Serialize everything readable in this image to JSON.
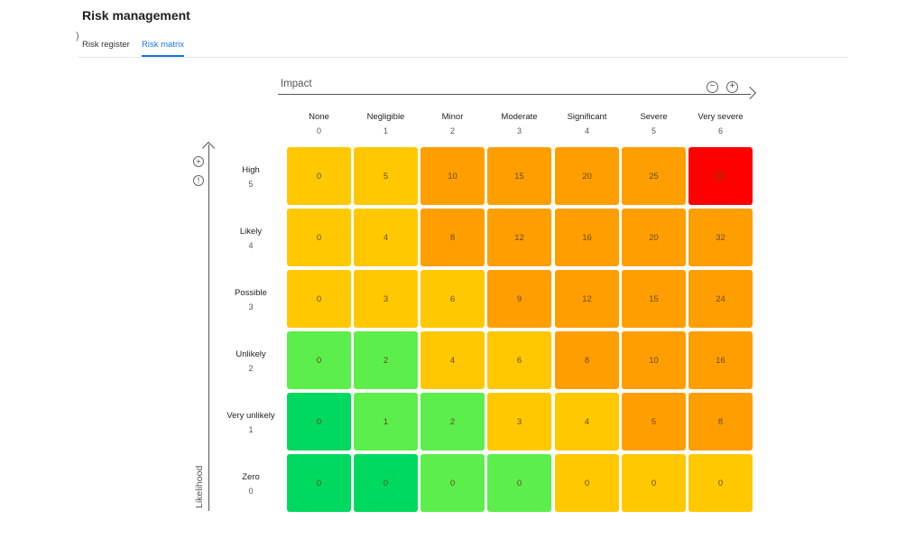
{
  "page": {
    "title": "Risk management"
  },
  "tabs": [
    {
      "label": "Risk register",
      "active": false
    },
    {
      "label": "Risk matrix",
      "active": true
    }
  ],
  "axes": {
    "impact_label": "Impact",
    "likelihood_label": "Likelihood"
  },
  "icons": {
    "zoom_out": "minus-circle-icon",
    "zoom_in": "plus-circle-icon",
    "add": "plus-circle-icon",
    "info": "info-circle-icon"
  },
  "impact_levels": [
    {
      "label": "None",
      "value": "0"
    },
    {
      "label": "Negligible",
      "value": "1"
    },
    {
      "label": "Minor",
      "value": "2"
    },
    {
      "label": "Moderate",
      "value": "3"
    },
    {
      "label": "Significant",
      "value": "4"
    },
    {
      "label": "Severe",
      "value": "5"
    },
    {
      "label": "Very severe",
      "value": "6"
    }
  ],
  "likelihood_levels": [
    {
      "label": "High",
      "value": "5"
    },
    {
      "label": "Likely",
      "value": "4"
    },
    {
      "label": "Possible",
      "value": "3"
    },
    {
      "label": "Unlikely",
      "value": "2"
    },
    {
      "label": "Very unlikely",
      "value": "1"
    },
    {
      "label": "Zero",
      "value": "0"
    }
  ],
  "matrix": [
    [
      "0",
      "5",
      "10",
      "15",
      "20",
      "25",
      "30"
    ],
    [
      "0",
      "4",
      "8",
      "12",
      "16",
      "20",
      "32"
    ],
    [
      "0",
      "3",
      "6",
      "9",
      "12",
      "15",
      "24"
    ],
    [
      "0",
      "2",
      "4",
      "6",
      "8",
      "10",
      "16"
    ],
    [
      "0",
      "1",
      "2",
      "3",
      "4",
      "5",
      "8"
    ],
    [
      "0",
      "0",
      "0",
      "0",
      "0",
      "0",
      "0"
    ]
  ],
  "matrix_colors": [
    [
      "#FFC800",
      "#FFC800",
      "#FF9E00",
      "#FF9E00",
      "#FF9E00",
      "#FF9E00",
      "#FF0000"
    ],
    [
      "#FFC800",
      "#FFC800",
      "#FF9E00",
      "#FF9E00",
      "#FF9E00",
      "#FF9E00",
      "#FF9E00"
    ],
    [
      "#FFC800",
      "#FFC800",
      "#FFC800",
      "#FF9E00",
      "#FF9E00",
      "#FF9E00",
      "#FF9E00"
    ],
    [
      "#5CEE4A",
      "#5CEE4A",
      "#FFC800",
      "#FFC800",
      "#FF9E00",
      "#FF9E00",
      "#FF9E00"
    ],
    [
      "#00D95F",
      "#5CEE4A",
      "#5CEE4A",
      "#FFC800",
      "#FFC800",
      "#FF9E00",
      "#FF9E00"
    ],
    [
      "#00D95F",
      "#00D95F",
      "#5CEE4A",
      "#5CEE4A",
      "#FFC800",
      "#FFC800",
      "#FFC800"
    ]
  ]
}
